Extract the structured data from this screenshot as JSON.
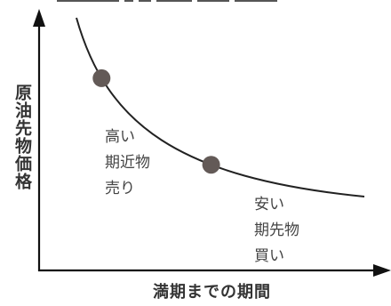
{
  "diagram": {
    "y_axis_label": "原油先物価格",
    "x_axis_label": "満期までの期間",
    "points": [
      {
        "id": "near",
        "lines": [
          "高い",
          "期近物",
          "売り"
        ],
        "t": 0.21
      },
      {
        "id": "far",
        "lines": [
          "安い",
          "期先物",
          "買い"
        ],
        "t": 0.66
      }
    ],
    "colors": {
      "axis": "#111111",
      "curve": "#222222",
      "point": "#635a57",
      "text": "#333333"
    }
  }
}
